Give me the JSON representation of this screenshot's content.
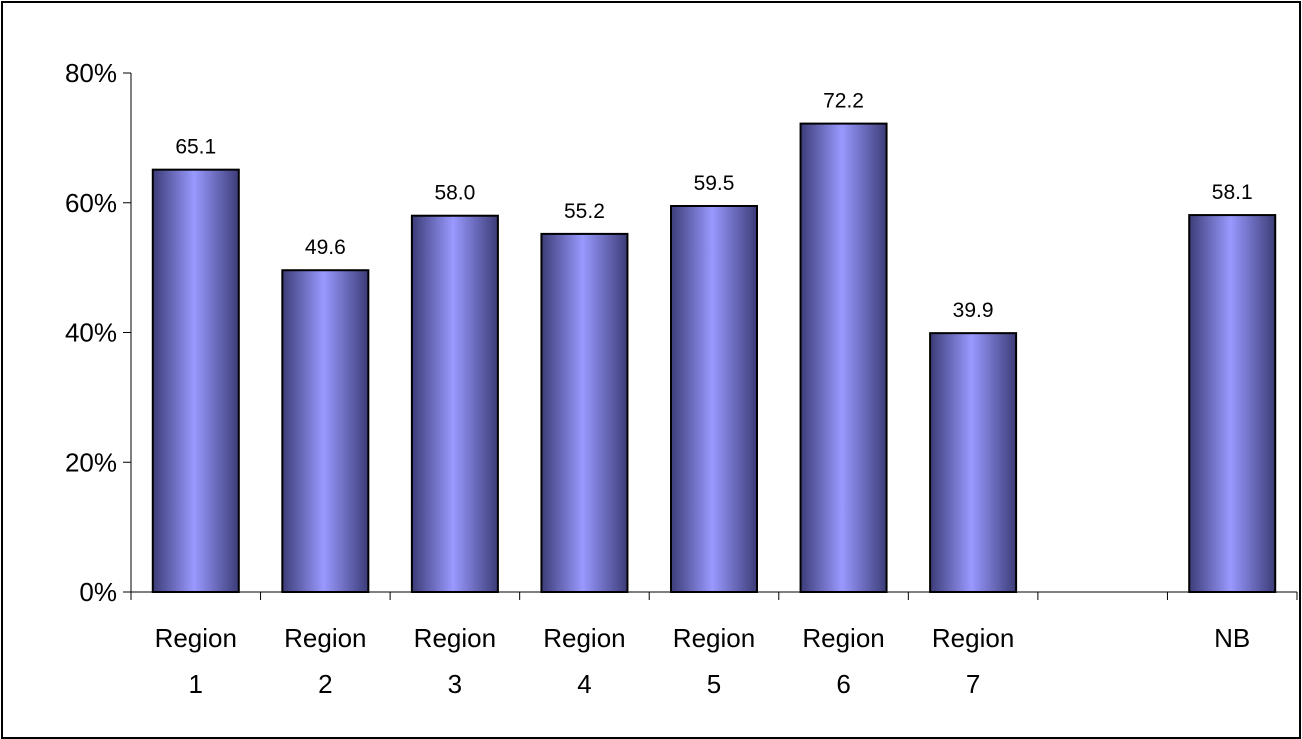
{
  "chart_data": {
    "type": "bar",
    "title": "",
    "xlabel": "",
    "ylabel": "",
    "categories": [
      [
        "Region",
        "1"
      ],
      [
        "Region",
        "2"
      ],
      [
        "Region",
        "3"
      ],
      [
        "Region",
        "4"
      ],
      [
        "Region",
        "5"
      ],
      [
        "Region",
        "6"
      ],
      [
        "Region",
        "7"
      ],
      [
        "",
        ""
      ],
      [
        "NB",
        ""
      ]
    ],
    "values": [
      65.1,
      49.6,
      58.0,
      55.2,
      59.5,
      72.2,
      39.9,
      null,
      58.1
    ],
    "data_labels": [
      "65.1",
      "49.6",
      "58.0",
      "55.2",
      "59.5",
      "72.2",
      "39.9",
      "",
      "58.1"
    ],
    "ylim": [
      0,
      80
    ],
    "y_ticks": [
      0,
      20,
      40,
      60,
      80
    ],
    "y_tick_labels": [
      "0%",
      "20%",
      "40%",
      "60%",
      "80%"
    ],
    "grid": false,
    "legend": "none",
    "colors": {
      "bar_light": "#9999ff",
      "bar_dark": "#3c3c78",
      "axis": "#000000",
      "frame": "#000000"
    }
  }
}
